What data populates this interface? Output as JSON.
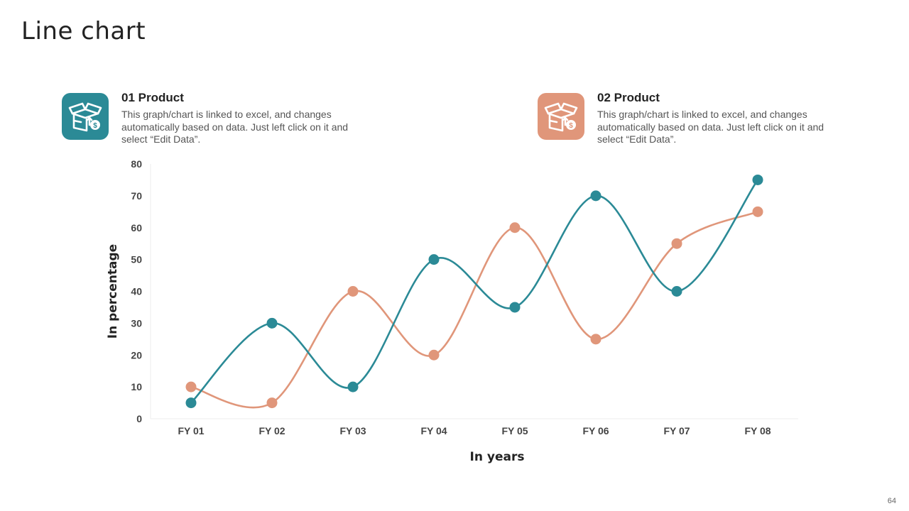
{
  "page": {
    "title": "Line chart",
    "page_number": "64"
  },
  "legend": [
    {
      "heading": "01 Product",
      "description": "This graph/chart is linked to excel, and changes automatically based on data. Just left click on it and select “Edit Data”.",
      "color": "#2b8a96",
      "icon": "box-dollar-icon"
    },
    {
      "heading": "02 Product",
      "description": "This graph/chart is linked to excel, and changes automatically based on data. Just left click on it and select “Edit Data”.",
      "color": "#e0967a",
      "icon": "box-dollar-icon"
    }
  ],
  "chart_data": {
    "type": "line",
    "title": "",
    "xlabel": "In years",
    "ylabel": "In percentage",
    "categories": [
      "FY 01",
      "FY 02",
      "FY 03",
      "FY 04",
      "FY 05",
      "FY 06",
      "FY 07",
      "FY 08"
    ],
    "ylim": [
      0,
      80
    ],
    "yticks": [
      0,
      10,
      20,
      30,
      40,
      50,
      60,
      70,
      80
    ],
    "smooth": true,
    "grid": false,
    "series": [
      {
        "name": "01 Product",
        "color": "#2b8a96",
        "values": [
          5,
          30,
          10,
          50,
          35,
          70,
          40,
          75
        ]
      },
      {
        "name": "02 Product",
        "color": "#e0967a",
        "values": [
          10,
          5,
          40,
          20,
          60,
          25,
          55,
          65
        ]
      }
    ]
  }
}
